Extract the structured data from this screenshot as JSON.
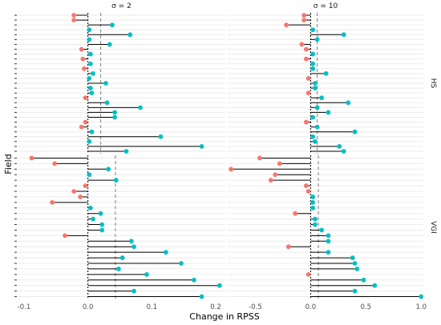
{
  "chart_data": {
    "type": "lollipop",
    "xlabel": "Change in RPSS",
    "ylabel": "Field",
    "row_groups": [
      "HS",
      "VGI"
    ],
    "panels": [
      {
        "strip": "σ = 2",
        "xlim": [
          -0.11,
          0.215
        ],
        "xticks": [
          -0.1,
          0.0,
          0.1,
          0.2
        ],
        "xtick_labels": [
          "-0.1",
          "0.0",
          "0.1",
          "0.2"
        ],
        "mean": {
          "HS": 0.02,
          "VGI": 0.043
        },
        "HS": [
          -0.022,
          -0.022,
          0.038,
          0.002,
          0.066,
          0.002,
          0.034,
          -0.01,
          0.004,
          -0.008,
          0.004,
          -0.006,
          0.008,
          0.002,
          0.028,
          0.004,
          0.006,
          -0.004,
          0.03,
          0.082,
          0.042,
          0.042,
          -0.004,
          -0.01,
          0.006,
          0.114,
          0.002,
          0.178,
          0.06
        ],
        "VGI": [
          -0.088,
          -0.052,
          0.032,
          0.002,
          0.044,
          -0.004,
          -0.022,
          -0.012,
          -0.056,
          0.004,
          0.02,
          0.008,
          0.022,
          0.022,
          -0.036,
          0.068,
          0.072,
          0.122,
          0.054,
          0.146,
          0.048,
          0.092,
          0.166,
          0.206,
          0.072,
          0.178
        ]
      },
      {
        "strip": "σ = 10",
        "xlim": [
          -0.75,
          1.02
        ],
        "xticks": [
          -0.5,
          0.0,
          0.5,
          1.0
        ],
        "xtick_labels": [
          "-0.5",
          "0.0",
          "0.5",
          "1.0"
        ],
        "mean": {
          "HS": 0.06,
          "VGI": 0.07
        },
        "HS": [
          -0.06,
          -0.06,
          -0.22,
          0.02,
          0.3,
          0.06,
          -0.08,
          -0.04,
          0.02,
          -0.04,
          0.02,
          0.02,
          0.14,
          -0.02,
          0.04,
          0.04,
          -0.02,
          0.1,
          0.34,
          0.06,
          0.16,
          0.02,
          -0.04,
          0.06,
          0.4,
          0.02,
          0.04,
          0.26,
          0.3
        ],
        "VGI": [
          -0.46,
          -0.28,
          -0.72,
          -0.32,
          -0.36,
          -0.04,
          -0.02,
          0.02,
          0.02,
          0.02,
          -0.14,
          0.04,
          0.04,
          0.1,
          0.16,
          0.16,
          -0.2,
          0.16,
          0.38,
          0.4,
          0.42,
          -0.02,
          0.48,
          0.58,
          0.4,
          1.0
        ]
      }
    ],
    "colors": {
      "positive": "#00bfc4",
      "negative": "#f8766d"
    }
  }
}
